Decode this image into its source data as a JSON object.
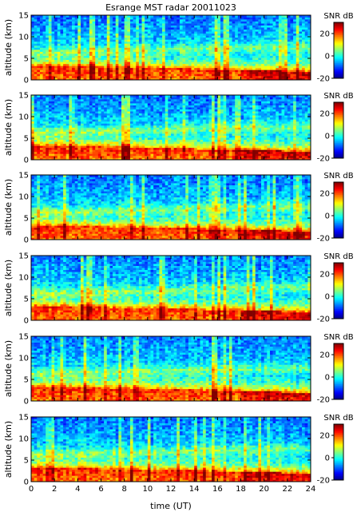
{
  "chart_data": {
    "type": "heatmap",
    "title": "Esrange MST radar 20011023",
    "xlabel": "time (UT)",
    "xlim": [
      0,
      24
    ],
    "xticks": [
      0,
      2,
      4,
      6,
      8,
      10,
      12,
      14,
      16,
      18,
      20,
      22,
      24
    ],
    "colorscale": "jet",
    "panels": [
      {
        "ylabel": "altitude (km)",
        "ylim": [
          0,
          15
        ],
        "yticks": [
          0,
          5,
          10,
          15
        ],
        "colorbar_label": "SNR dB",
        "clim": [
          -20,
          30
        ],
        "colorbar_ticks": [
          -20,
          0,
          20
        ]
      },
      {
        "ylabel": "altitude (km)",
        "ylim": [
          0,
          15
        ],
        "yticks": [
          0,
          5,
          10,
          15
        ],
        "colorbar_label": "SNR dB",
        "clim": [
          -20,
          30
        ],
        "colorbar_ticks": [
          -20,
          0,
          20
        ]
      },
      {
        "ylabel": "altitude (km)",
        "ylim": [
          0,
          15
        ],
        "yticks": [
          0,
          5,
          10,
          15
        ],
        "colorbar_label": "SNR dB",
        "clim": [
          -20,
          30
        ],
        "colorbar_ticks": [
          -20,
          0,
          20
        ]
      },
      {
        "ylabel": "altitude (km)",
        "ylim": [
          0,
          15
        ],
        "yticks": [
          0,
          5,
          10,
          15
        ],
        "colorbar_label": "SNR dB",
        "clim": [
          -20,
          30
        ],
        "colorbar_ticks": [
          -20,
          0,
          20
        ]
      },
      {
        "ylabel": "altitude (km)",
        "ylim": [
          0,
          15
        ],
        "yticks": [
          0,
          5,
          10,
          15
        ],
        "colorbar_label": "SNR dB",
        "clim": [
          -20,
          30
        ],
        "colorbar_ticks": [
          -20,
          0,
          20
        ]
      },
      {
        "ylabel": "altitude (km)",
        "ylim": [
          0,
          15
        ],
        "yticks": [
          0,
          5,
          10,
          15
        ],
        "colorbar_label": "SNR dB",
        "clim": [
          -20,
          30
        ],
        "colorbar_ticks": [
          -20,
          0,
          20
        ]
      }
    ]
  }
}
